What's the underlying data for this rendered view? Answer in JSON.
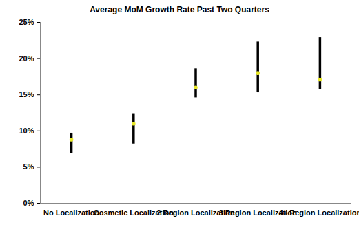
{
  "chart_data": {
    "type": "scatter",
    "title": "Average MoM Growth Rate Past Two Quarters",
    "categories": [
      "No Localization",
      "Cosmetic Localization",
      "2 Region Localization",
      "3 Region Localization",
      "4+ Region Localization"
    ],
    "values": [
      8.8,
      11.0,
      16.0,
      18.0,
      17.1
    ],
    "error_low": [
      6.9,
      8.2,
      14.6,
      15.3,
      15.7
    ],
    "error_high": [
      9.7,
      12.4,
      18.6,
      22.3,
      22.9
    ],
    "color": "#e8e82a",
    "ylim": [
      0,
      25
    ],
    "yticks": [
      {
        "value": 0,
        "label": "0%"
      },
      {
        "value": 5,
        "label": "5%"
      },
      {
        "value": 10,
        "label": "10%"
      },
      {
        "value": 15,
        "label": "15%"
      },
      {
        "value": 20,
        "label": "20%"
      },
      {
        "value": 25,
        "label": "25%"
      }
    ],
    "grid": false
  }
}
